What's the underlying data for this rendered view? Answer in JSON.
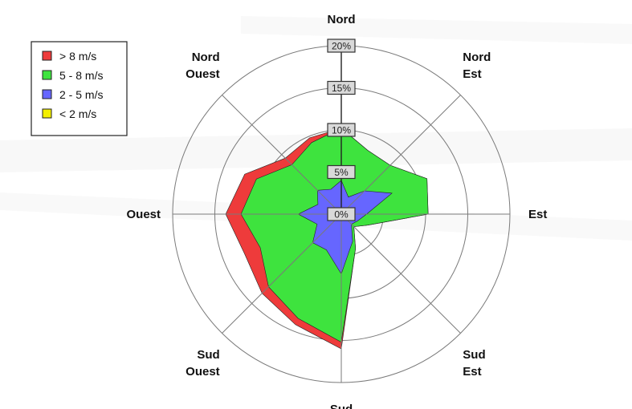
{
  "chart_data": {
    "type": "radar",
    "subtype": "wind-rose",
    "directions": [
      {
        "label": [
          "Nord"
        ]
      },
      {
        "label": [
          "Nord",
          "Est"
        ]
      },
      {
        "label": [
          "Est"
        ]
      },
      {
        "label": [
          "Sud",
          "Est"
        ]
      },
      {
        "label": [
          "Sud"
        ]
      },
      {
        "label": [
          "Sud",
          "Ouest"
        ]
      },
      {
        "label": [
          "Ouest"
        ]
      },
      {
        "label": [
          "Nord",
          "Ouest"
        ]
      }
    ],
    "ticks": [
      "0%",
      "5%",
      "10%",
      "15%",
      "20%"
    ],
    "tick_values": [
      0,
      5,
      10,
      15,
      20
    ],
    "rmax": 20,
    "angles": [
      0,
      22.5,
      45,
      67.5,
      90,
      112.5,
      135,
      157.5,
      180,
      202.5,
      225,
      247.5,
      270,
      292.5,
      315,
      337.5
    ],
    "series": [
      {
        "name": "> 8 m/s",
        "color": "#ee3b3b",
        "values": [
          10.2,
          8.2,
          8.2,
          11.0,
          10.3,
          3.4,
          2.1,
          4.4,
          16.0,
          14.2,
          13.3,
          12.4,
          13.7,
          12.4,
          9.4,
          9.8
        ]
      },
      {
        "name": "5 - 8 m/s",
        "color": "#3ee33e",
        "values": [
          10.2,
          8.2,
          8.2,
          11.0,
          10.3,
          3.4,
          2.1,
          4.4,
          15.2,
          13.4,
          12.2,
          10.4,
          11.9,
          10.9,
          8.3,
          9.2
        ]
      },
      {
        "name": "2 - 5 m/s",
        "color": "#6666ff",
        "values": [
          4.0,
          2.2,
          3.9,
          6.5,
          3.0,
          2.1,
          1.7,
          3.5,
          7.1,
          4.6,
          4.8,
          3.1,
          5.1,
          3.0,
          4.0,
          3.2
        ]
      },
      {
        "name": "< 2 m/s",
        "color": "#f4f000",
        "values": [
          0.6,
          0.6,
          0.6,
          0.6,
          0.6,
          0.6,
          0.6,
          0.6,
          0.6,
          0.6,
          0.6,
          0.6,
          0.6,
          0.6,
          0.6,
          0.6
        ]
      }
    ],
    "legend_position": "top-left"
  }
}
